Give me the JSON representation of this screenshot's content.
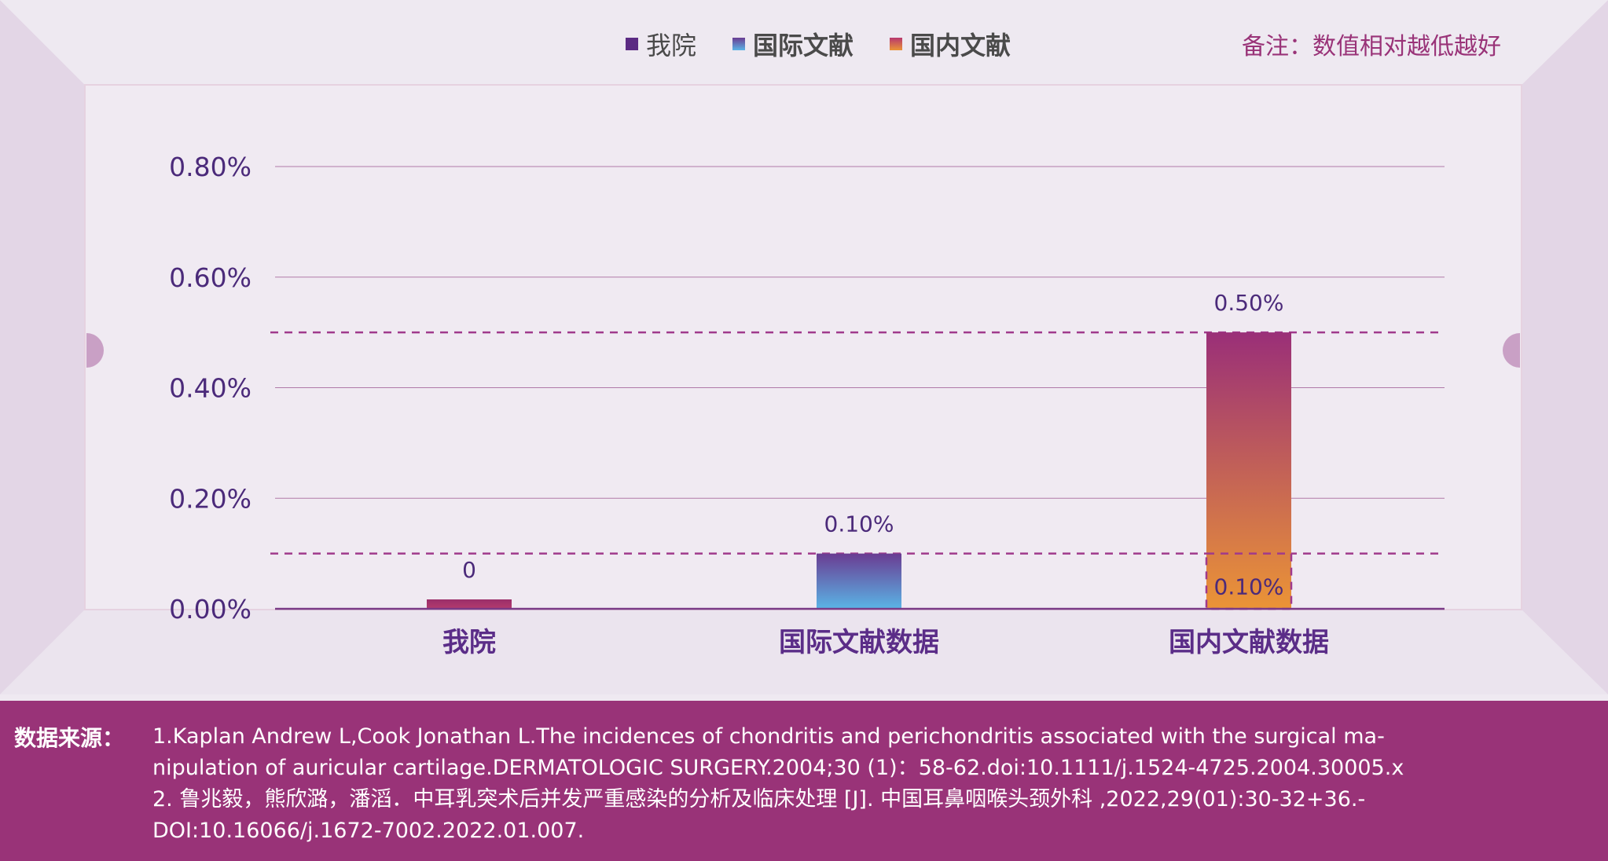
{
  "legend": [
    {
      "label": "我院",
      "color": "#5b2a83"
    },
    {
      "label": "国际文献",
      "color": "#5aaee0"
    },
    {
      "label": "国内文献",
      "color": "#e8903a"
    }
  ],
  "note": "备注：数值相对越低越好",
  "chart_data": {
    "type": "bar",
    "categories": [
      "我院",
      "国际文献数据",
      "国内文献数据"
    ],
    "values": [
      0,
      0.1,
      0.5
    ],
    "value_labels": [
      "0",
      "0.10%",
      "0.50%"
    ],
    "y_ticks": [
      "0.00%",
      "0.20%",
      "0.40%",
      "0.60%",
      "0.80%"
    ],
    "y_tick_values": [
      0,
      0.2,
      0.4,
      0.6,
      0.8
    ],
    "ylim": [
      0,
      0.8
    ],
    "reference_lines": [
      0.1,
      0.5
    ],
    "reference_box_label": "0.10%",
    "grid": true,
    "legend_position": "top-center"
  },
  "footer": {
    "label": "数据来源：",
    "lines": [
      "1.Kaplan Andrew L,Cook Jonathan L.The incidences of chondritis and perichondritis associated with the surgical ma-",
      "nipulation of auricular cartilage.DERMATOLOGIC SURGERY.2004;30 (1)：58-62.doi:10.1111/j.1524-4725.2004.30005.x",
      "2. 鲁兆毅，熊欣潞，潘滔．中耳乳突术后并发严重感染的分析及临床处理 [J]. 中国耳鼻咽喉头颈外科 ,2022,29(01):30-32+36.-",
      "DOI:10.16066/j.1672-7002.2022.01.007."
    ]
  }
}
